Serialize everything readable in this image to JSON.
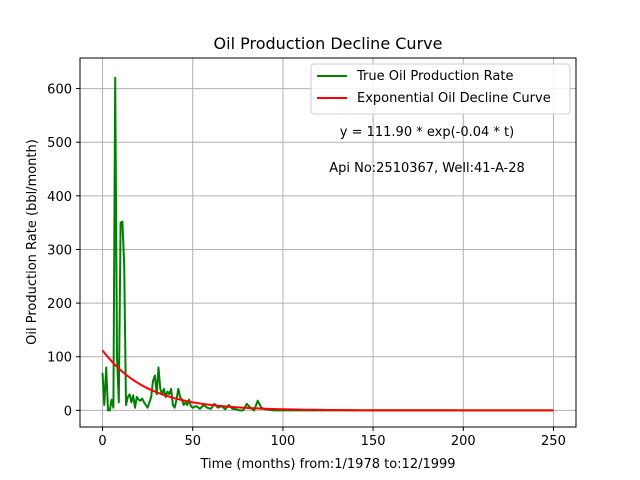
{
  "chart_data": {
    "type": "line",
    "title": "Oil Production Decline Curve",
    "xlabel": "Time (months) from:1/1978 to:12/1999",
    "ylabel": "Oil Production Rate (bbl/month)",
    "xlim": [
      -12.5,
      262.5
    ],
    "ylim": [
      -31,
      657
    ],
    "xticks": [
      0,
      50,
      100,
      150,
      200,
      250
    ],
    "yticks": [
      0,
      100,
      200,
      300,
      400,
      500,
      600
    ],
    "grid": true,
    "legend_position": "upper-right",
    "annotations": [
      "y = 111.90 * exp(-0.04 * t)",
      "Api No:2510367, Well:41-A-28"
    ],
    "series": [
      {
        "name": "True Oil Production Rate",
        "color": "#008000",
        "x": [
          0,
          1,
          2,
          3,
          4,
          5,
          6,
          7,
          8,
          9,
          10,
          11,
          12,
          13,
          14,
          15,
          16,
          17,
          18,
          19,
          20,
          21,
          22,
          23,
          24,
          25,
          26,
          27,
          28,
          29,
          30,
          31,
          32,
          33,
          34,
          35,
          36,
          37,
          38,
          39,
          40,
          41,
          42,
          43,
          44,
          45,
          46,
          47,
          48,
          49,
          50,
          52,
          54,
          56,
          58,
          60,
          62,
          64,
          66,
          68,
          70,
          72,
          74,
          76,
          78,
          80,
          82,
          84,
          86,
          88,
          90,
          95,
          100,
          110,
          120,
          130,
          140,
          150,
          160,
          170,
          180,
          190,
          200,
          210,
          220,
          230,
          240,
          250
        ],
        "y": [
          70,
          10,
          80,
          0,
          0,
          20,
          5,
          620,
          100,
          15,
          350,
          352,
          270,
          10,
          25,
          30,
          15,
          28,
          5,
          25,
          20,
          18,
          22,
          15,
          10,
          5,
          15,
          25,
          55,
          65,
          30,
          80,
          40,
          30,
          40,
          25,
          35,
          30,
          40,
          10,
          5,
          20,
          40,
          25,
          20,
          10,
          15,
          10,
          20,
          8,
          5,
          8,
          3,
          10,
          5,
          3,
          12,
          5,
          8,
          2,
          10,
          3,
          2,
          0,
          0,
          12,
          5,
          0,
          18,
          5,
          2,
          0,
          0,
          0,
          0,
          0,
          0,
          0,
          0,
          0,
          0,
          0,
          0,
          0,
          0,
          0,
          0,
          0
        ]
      },
      {
        "name": "Exponential Oil Decline Curve",
        "color": "#ff0000",
        "model": {
          "a": 111.9,
          "b": 0.04,
          "x_start": 0,
          "x_end": 250
        }
      }
    ]
  }
}
